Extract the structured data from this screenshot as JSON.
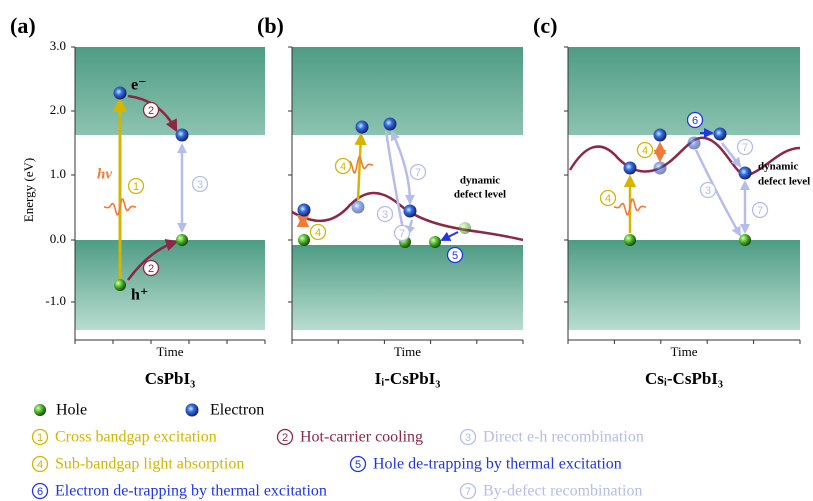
{
  "panels": [
    {
      "label": "(a)",
      "x_axis_label": "Time",
      "title": "CsPbI₃"
    },
    {
      "label": "(b)",
      "x_axis_label": "Time",
      "title": "Iᵢ-CsPbI₃",
      "defect_label": [
        "dynamic",
        "defect level"
      ]
    },
    {
      "label": "(c)",
      "x_axis_label": "Time",
      "title": "Csᵢ-CsPbI₃",
      "defect_label": [
        "dynamic",
        "defect level"
      ]
    }
  ],
  "y_axis": {
    "label": "Energy (eV)",
    "ticks": [
      "3.0",
      "2.0",
      "1.0",
      "0.0",
      "-1.0"
    ]
  },
  "annotations": {
    "electron": "e⁻",
    "hole": "h⁺",
    "photon": "hν"
  },
  "step_markers": [
    "1",
    "2",
    "3",
    "4",
    "5",
    "6",
    "7"
  ],
  "legend": {
    "particles": [
      "Hole",
      "Electron"
    ],
    "steps": [
      {
        "number": "1",
        "label": "Cross bandgap excitation"
      },
      {
        "number": "2",
        "label": "Hot-carrier cooling"
      },
      {
        "number": "3",
        "label": "Direct e-h recombination"
      },
      {
        "number": "4",
        "label": "Sub-bandgap light absorption"
      },
      {
        "number": "5",
        "label": "Hole de-trapping by thermal excitation"
      },
      {
        "number": "6",
        "label": "Electron de-trapping by thermal excitation"
      },
      {
        "number": "7",
        "label": "By-defect recombination"
      }
    ]
  }
}
